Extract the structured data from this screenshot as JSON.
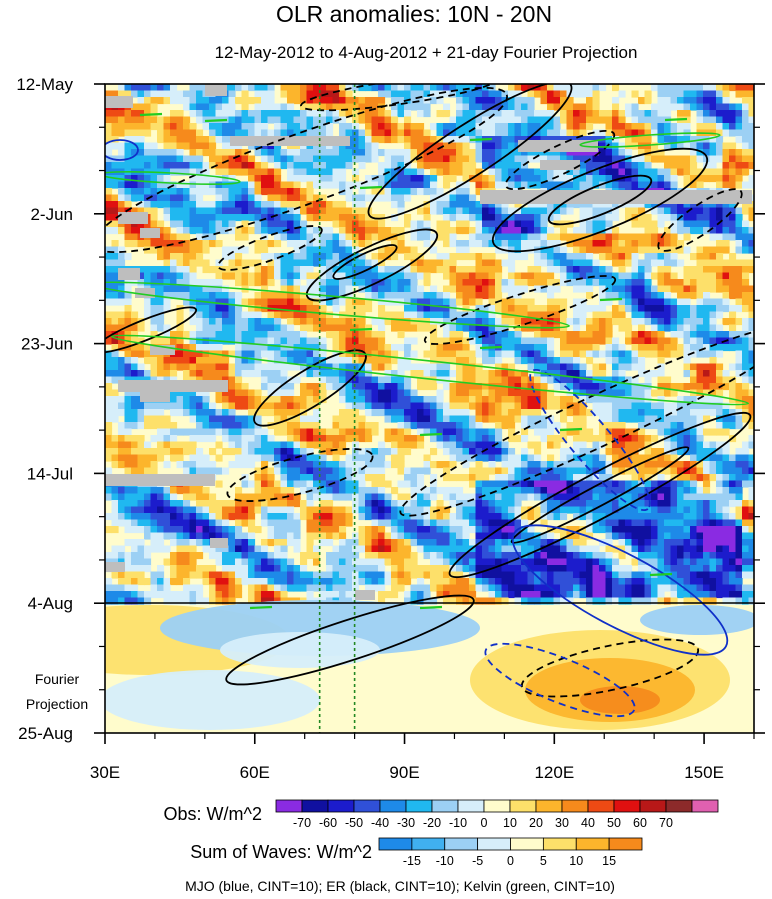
{
  "chart_data": {
    "type": "heatmap",
    "title": "OLR anomalies: 10N - 20N",
    "subtitle": "12-May-2012 to 4-Aug-2012 + 21-day Fourier Projection",
    "y_ticks": [
      "12-May",
      "2-Jun",
      "23-Jun",
      "14-Jul",
      "4-Aug",
      "25-Aug"
    ],
    "x_ticks": [
      "30E",
      "60E",
      "90E",
      "120E",
      "150E"
    ],
    "x_tick_values": [
      30,
      60,
      90,
      120,
      150
    ],
    "xlim": [
      30,
      160
    ],
    "ylim_days": [
      0,
      105
    ],
    "y_tick_days": [
      0,
      21,
      42,
      63,
      84,
      105
    ],
    "projection_label_line1": "Fourier",
    "projection_label_line2": "Projection",
    "obs_bar": {
      "label": "Obs: W/m^2",
      "levels": [
        "-70",
        "-60",
        "-50",
        "-40",
        "-30",
        "-20",
        "-10",
        "0",
        "10",
        "20",
        "30",
        "40",
        "50",
        "60",
        "70"
      ],
      "colors": [
        "#8a2be2",
        "#1010a0",
        "#1c1ccc",
        "#3050d8",
        "#1e8ae8",
        "#20b8f0",
        "#9cd0f4",
        "#d6eefa",
        "#fffccc",
        "#fde06a",
        "#fcb52c",
        "#f68a1c",
        "#ee4a14",
        "#e01010",
        "#b81818",
        "#8c2a2a",
        "#e060b0"
      ]
    },
    "waves_bar": {
      "label": "Sum of Waves: W/m^2",
      "levels": [
        "-15",
        "-10",
        "-5",
        "0",
        "5",
        "10",
        "15"
      ],
      "colors": [
        "#1e8ae8",
        "#40b0f0",
        "#9cd0f4",
        "#d6eefa",
        "#fffccc",
        "#fde06a",
        "#fcb52c",
        "#f68a1c"
      ]
    },
    "legend_note": "MJO (blue, CINT=10); ER (black, CINT=10); Kelvin (green, CINT=10)",
    "reference_lines_lon": [
      73,
      80
    ],
    "colors": {
      "mjo": "#1030c8",
      "er": "#000000",
      "kelvin": "#22cc22",
      "ref_line": "#228822"
    }
  }
}
